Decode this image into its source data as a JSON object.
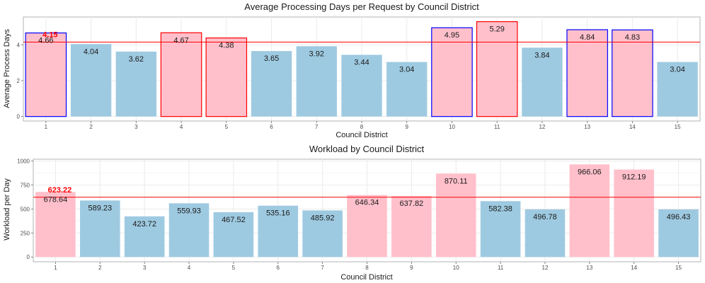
{
  "chart_data": [
    {
      "type": "bar",
      "title": "Average Processing Days per Request by Council District",
      "xlabel": "Council District",
      "ylabel": "Average Process Days",
      "categories": [
        "1",
        "2",
        "3",
        "4",
        "5",
        "6",
        "7",
        "8",
        "9",
        "10",
        "11",
        "12",
        "13",
        "14",
        "15"
      ],
      "values": [
        4.66,
        4.04,
        3.62,
        4.67,
        4.38,
        3.65,
        3.92,
        3.44,
        3.04,
        4.95,
        5.29,
        3.84,
        4.84,
        4.83,
        3.04
      ],
      "value_labels": [
        "4.66",
        "4.04",
        "3.62",
        "4.67",
        "4.38",
        "3.65",
        "3.92",
        "3.44",
        "3.04",
        "4.95",
        "5.29",
        "3.84",
        "4.84",
        "4.83",
        "3.04"
      ],
      "highlight": [
        "above",
        "normal",
        "normal",
        "above",
        "above",
        "normal",
        "normal",
        "normal",
        "normal",
        "above",
        "above",
        "normal",
        "above",
        "above",
        "normal"
      ],
      "outline": [
        "blue",
        "none",
        "none",
        "red",
        "red",
        "none",
        "none",
        "none",
        "none",
        "blue",
        "red",
        "none",
        "blue",
        "blue",
        "none"
      ],
      "mean": 4.15,
      "mean_label": "4.15",
      "yticks": [
        0,
        2,
        4
      ],
      "ytick_labels": [
        "0",
        "2",
        "4"
      ],
      "ylim": [
        -0.25,
        5.55
      ],
      "grid": true,
      "colors": {
        "normal": "#9ecae1",
        "above": "#ffc0cb",
        "mean_line": "#ff0000",
        "outline_red": "#ff0000",
        "outline_blue": "#0000ff"
      }
    },
    {
      "type": "bar",
      "title": "Workload by Council District",
      "xlabel": "Council District",
      "ylabel": "Workload per Day",
      "categories": [
        "1",
        "2",
        "3",
        "4",
        "5",
        "6",
        "7",
        "8",
        "9",
        "10",
        "11",
        "12",
        "13",
        "14",
        "15"
      ],
      "values": [
        678.64,
        589.23,
        423.72,
        559.93,
        467.52,
        535.16,
        485.92,
        646.34,
        637.82,
        870.11,
        582.38,
        496.78,
        966.06,
        912.19,
        496.43
      ],
      "value_labels": [
        "678.64",
        "589.23",
        "423.72",
        "559.93",
        "467.52",
        "535.16",
        "485.92",
        "646.34",
        "637.82",
        "870.11",
        "582.38",
        "496.78",
        "966.06",
        "912.19",
        "496.43"
      ],
      "highlight": [
        "above",
        "normal",
        "normal",
        "normal",
        "normal",
        "normal",
        "normal",
        "above",
        "above",
        "above",
        "normal",
        "normal",
        "above",
        "above",
        "normal"
      ],
      "mean": 623.22,
      "mean_label": "623.22",
      "yticks": [
        0,
        250,
        500,
        750,
        1000
      ],
      "ytick_labels": [
        "0",
        "250",
        "500",
        "750",
        "1000"
      ],
      "ylim": [
        -50,
        1020
      ],
      "grid": true,
      "colors": {
        "normal": "#9ecae1",
        "above": "#ffc0cb",
        "mean_line": "#ff0000"
      }
    }
  ]
}
